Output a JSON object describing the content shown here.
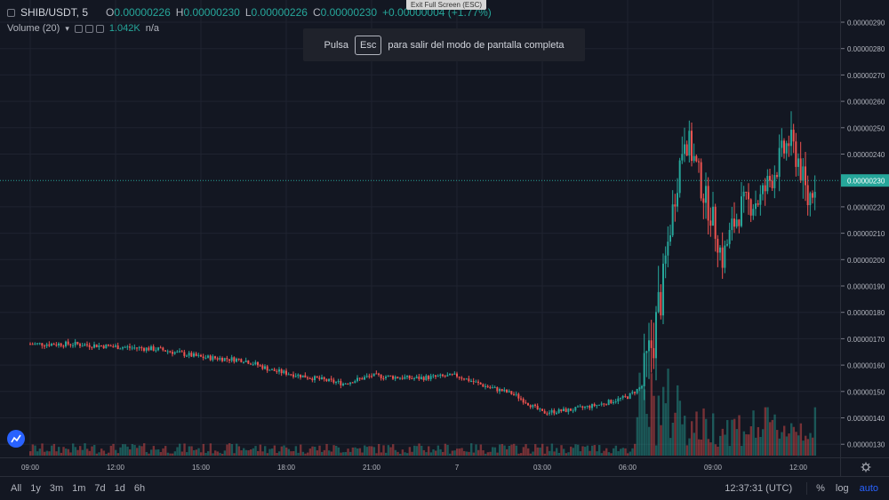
{
  "legend": {
    "symbol": "SHIB/USDT, 5",
    "o_key": "O",
    "o_val": "0.00000226",
    "h_key": "H",
    "h_val": "0.00000230",
    "l_key": "L",
    "l_val": "0.00000226",
    "c_key": "C",
    "c_val": "0.00000230",
    "change": "+0.00000004 (+1.77%)",
    "volume_label": "Volume (20)",
    "volume_value": "1.042K",
    "volume_ma": "n/a"
  },
  "fullscreen": {
    "exit_tab": "Exit Full Screen (ESC)",
    "toast_before": "Pulsa",
    "toast_key": "Esc",
    "toast_after": "para salir del modo de pantalla completa"
  },
  "price_scale": {
    "labels": [
      "0.00000290",
      "0.00000280",
      "0.00000270",
      "0.00000260",
      "0.00000250",
      "0.00000240",
      "0.00000220",
      "0.00000210",
      "0.00000200",
      "0.00000190",
      "0.00000180",
      "0.00000170",
      "0.00000160",
      "0.00000150",
      "0.00000140",
      "0.00000130"
    ],
    "current_price": "0.00000230"
  },
  "time_axis": {
    "labels": [
      "09:00",
      "12:00",
      "15:00",
      "18:00",
      "21:00",
      "7",
      "03:00",
      "06:00",
      "09:00",
      "12:00"
    ]
  },
  "bottom_bar": {
    "ranges": [
      "All",
      "1y",
      "3m",
      "1m",
      "7d",
      "1d",
      "6h"
    ],
    "clock": "12:37:31 (UTC)",
    "percent": "%",
    "log": "log",
    "auto": "auto"
  },
  "colors": {
    "up": "#26a69a",
    "down": "#ef5350",
    "background": "#131722",
    "current_line": "#26a69a"
  },
  "icons": {
    "logo": "tradingview-cloud-icon",
    "settings": "gear-icon"
  },
  "chart_data": {
    "type": "candlestick",
    "symbol": "SHIB/USDT",
    "interval": "5",
    "ylim": [
      1.25e-06,
      3e-06
    ],
    "x_ticks": [
      "09:00",
      "12:00",
      "15:00",
      "18:00",
      "21:00",
      "7",
      "03:00",
      "06:00",
      "09:00",
      "12:00"
    ],
    "price_anchors": [
      [
        "09:00",
        1.68e-06
      ],
      [
        "10:30",
        1.68e-06
      ],
      [
        "12:00",
        1.67e-06
      ],
      [
        "13:30",
        1.66e-06
      ],
      [
        "15:00",
        1.63e-06
      ],
      [
        "16:30",
        1.62e-06
      ],
      [
        "17:30",
        1.58e-06
      ],
      [
        "18:00",
        1.57e-06
      ],
      [
        "19:00",
        1.55e-06
      ],
      [
        "20:00",
        1.53e-06
      ],
      [
        "21:00",
        1.56e-06
      ],
      [
        "22:30",
        1.55e-06
      ],
      [
        "00:00",
        1.56e-06
      ],
      [
        "01:00",
        1.52e-06
      ],
      [
        "02:00",
        1.49e-06
      ],
      [
        "03:00",
        1.42e-06
      ],
      [
        "04:00",
        1.43e-06
      ],
      [
        "05:00",
        1.45e-06
      ],
      [
        "06:00",
        1.48e-06
      ],
      [
        "06:30",
        1.52e-06
      ],
      [
        "07:00",
        1.75e-06
      ],
      [
        "07:20",
        2e-06
      ],
      [
        "07:40",
        2.25e-06
      ],
      [
        "08:00",
        2.48e-06
      ],
      [
        "08:20",
        2.38e-06
      ],
      [
        "08:40",
        2.25e-06
      ],
      [
        "09:00",
        2.15e-06
      ],
      [
        "09:20",
        2e-06
      ],
      [
        "09:40",
        2.12e-06
      ],
      [
        "10:00",
        2.2e-06
      ],
      [
        "10:40",
        2.23e-06
      ],
      [
        "11:00",
        2.3e-06
      ],
      [
        "11:40",
        2.45e-06
      ],
      [
        "12:00",
        2.38e-06
      ],
      [
        "12:20",
        2.22e-06
      ],
      [
        "12:35",
        2.3e-06
      ]
    ],
    "current_price": 2.3e-06
  }
}
